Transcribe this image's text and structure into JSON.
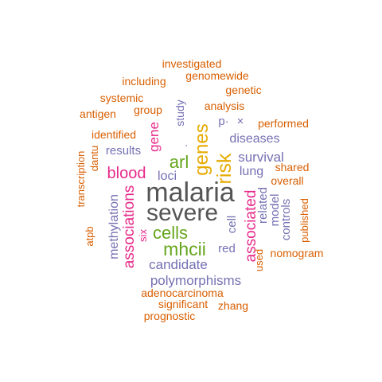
{
  "colors": {
    "grey": "#555555",
    "orange": "#d95f02",
    "green": "#66a61e",
    "gold": "#e6ab02",
    "pink": "#e7298a",
    "purple": "#7570b3"
  },
  "words": [
    {
      "text": "malaria",
      "color": "#555555"
    },
    {
      "text": "severe",
      "color": "#555555"
    },
    {
      "text": "risk",
      "color": "#e6ab02"
    },
    {
      "text": "genes",
      "color": "#e6ab02"
    },
    {
      "text": "mhcii",
      "color": "#66a61e"
    },
    {
      "text": "cells",
      "color": "#66a61e"
    },
    {
      "text": "arl",
      "color": "#66a61e"
    },
    {
      "text": "blood",
      "color": "#e7298a"
    },
    {
      "text": "associated",
      "color": "#e7298a"
    },
    {
      "text": "associations",
      "color": "#e7298a"
    },
    {
      "text": "gene",
      "color": "#e7298a"
    },
    {
      "text": "six",
      "color": "#e7298a"
    },
    {
      "text": "candidate",
      "color": "#7570b3"
    },
    {
      "text": "polymorphisms",
      "color": "#7570b3"
    },
    {
      "text": "survival",
      "color": "#7570b3"
    },
    {
      "text": "diseases",
      "color": "#7570b3"
    },
    {
      "text": "lung",
      "color": "#7570b3"
    },
    {
      "text": "loci",
      "color": "#7570b3"
    },
    {
      "text": "results",
      "color": "#7570b3"
    },
    {
      "text": "methylation",
      "color": "#7570b3"
    },
    {
      "text": "cell",
      "color": "#7570b3"
    },
    {
      "text": "red",
      "color": "#7570b3"
    },
    {
      "text": "model",
      "color": "#7570b3"
    },
    {
      "text": "controls",
      "color": "#7570b3"
    },
    {
      "text": "related",
      "color": "#7570b3"
    },
    {
      "text": "study",
      "color": "#7570b3"
    },
    {
      "text": "p·",
      "color": "#7570b3"
    },
    {
      "text": "×",
      "color": "#7570b3"
    },
    {
      "text": "·",
      "color": "#7570b3"
    },
    {
      "text": "used",
      "color": "#d95f02"
    },
    {
      "text": "investigated",
      "color": "#d95f02"
    },
    {
      "text": "genomewide",
      "color": "#d95f02"
    },
    {
      "text": "including",
      "color": "#d95f02"
    },
    {
      "text": "genetic",
      "color": "#d95f02"
    },
    {
      "text": "systemic",
      "color": "#d95f02"
    },
    {
      "text": "analysis",
      "color": "#d95f02"
    },
    {
      "text": "antigen",
      "color": "#d95f02"
    },
    {
      "text": "group",
      "color": "#d95f02"
    },
    {
      "text": "performed",
      "color": "#d95f02"
    },
    {
      "text": "identified",
      "color": "#d95f02"
    },
    {
      "text": "dantu",
      "color": "#d95f02"
    },
    {
      "text": "transcription",
      "color": "#d95f02"
    },
    {
      "text": "shared",
      "color": "#d95f02"
    },
    {
      "text": "overall",
      "color": "#d95f02"
    },
    {
      "text": "published",
      "color": "#d95f02"
    },
    {
      "text": "atpb",
      "color": "#d95f02"
    },
    {
      "text": "nomogram",
      "color": "#d95f02"
    },
    {
      "text": "adenocarcinoma",
      "color": "#d95f02"
    },
    {
      "text": "significant",
      "color": "#d95f02"
    },
    {
      "text": "zhang",
      "color": "#d95f02"
    },
    {
      "text": "prognostic",
      "color": "#d95f02"
    }
  ]
}
